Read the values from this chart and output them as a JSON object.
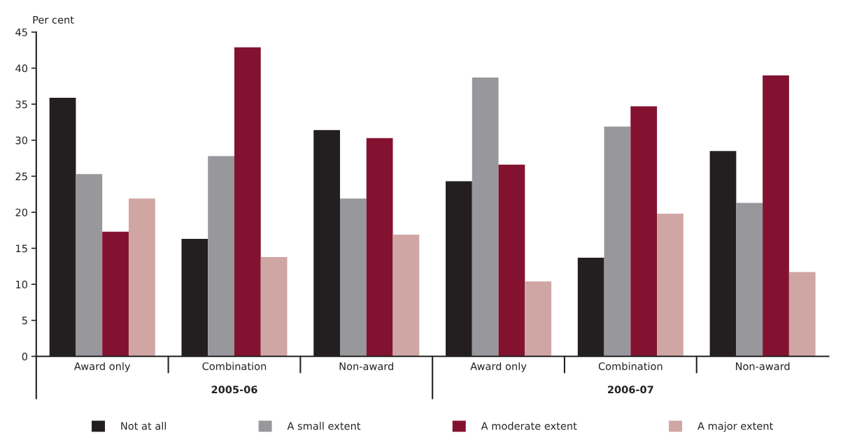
{
  "chart_data": {
    "type": "bar",
    "ylabel": "Per cent",
    "categories": [
      "Award only",
      "Combination",
      "Non-award",
      "Award only",
      "Combination",
      "Non-award"
    ],
    "series": [
      {
        "name": "Not at all",
        "color": "#231f20",
        "values": [
          35.9,
          16.3,
          31.4,
          24.3,
          13.7,
          28.5
        ]
      },
      {
        "name": "A small extent",
        "color": "#98979c",
        "values": [
          25.3,
          27.8,
          21.9,
          38.7,
          31.9,
          21.3
        ]
      },
      {
        "name": "A moderate extent",
        "color": "#831230",
        "values": [
          17.3,
          42.9,
          30.3,
          26.6,
          34.7,
          39.0
        ]
      },
      {
        "name": "A major extent",
        "color": "#cfa6a4",
        "values": [
          21.9,
          13.8,
          16.9,
          10.4,
          19.8,
          11.7
        ]
      }
    ],
    "annotations": [
      "2005-06",
      "2006-07"
    ],
    "ylim": [
      0,
      45
    ],
    "yticks": [
      0,
      5,
      10,
      15,
      20,
      25,
      30,
      35,
      40,
      45
    ],
    "grid": false,
    "legend": "bottom"
  }
}
